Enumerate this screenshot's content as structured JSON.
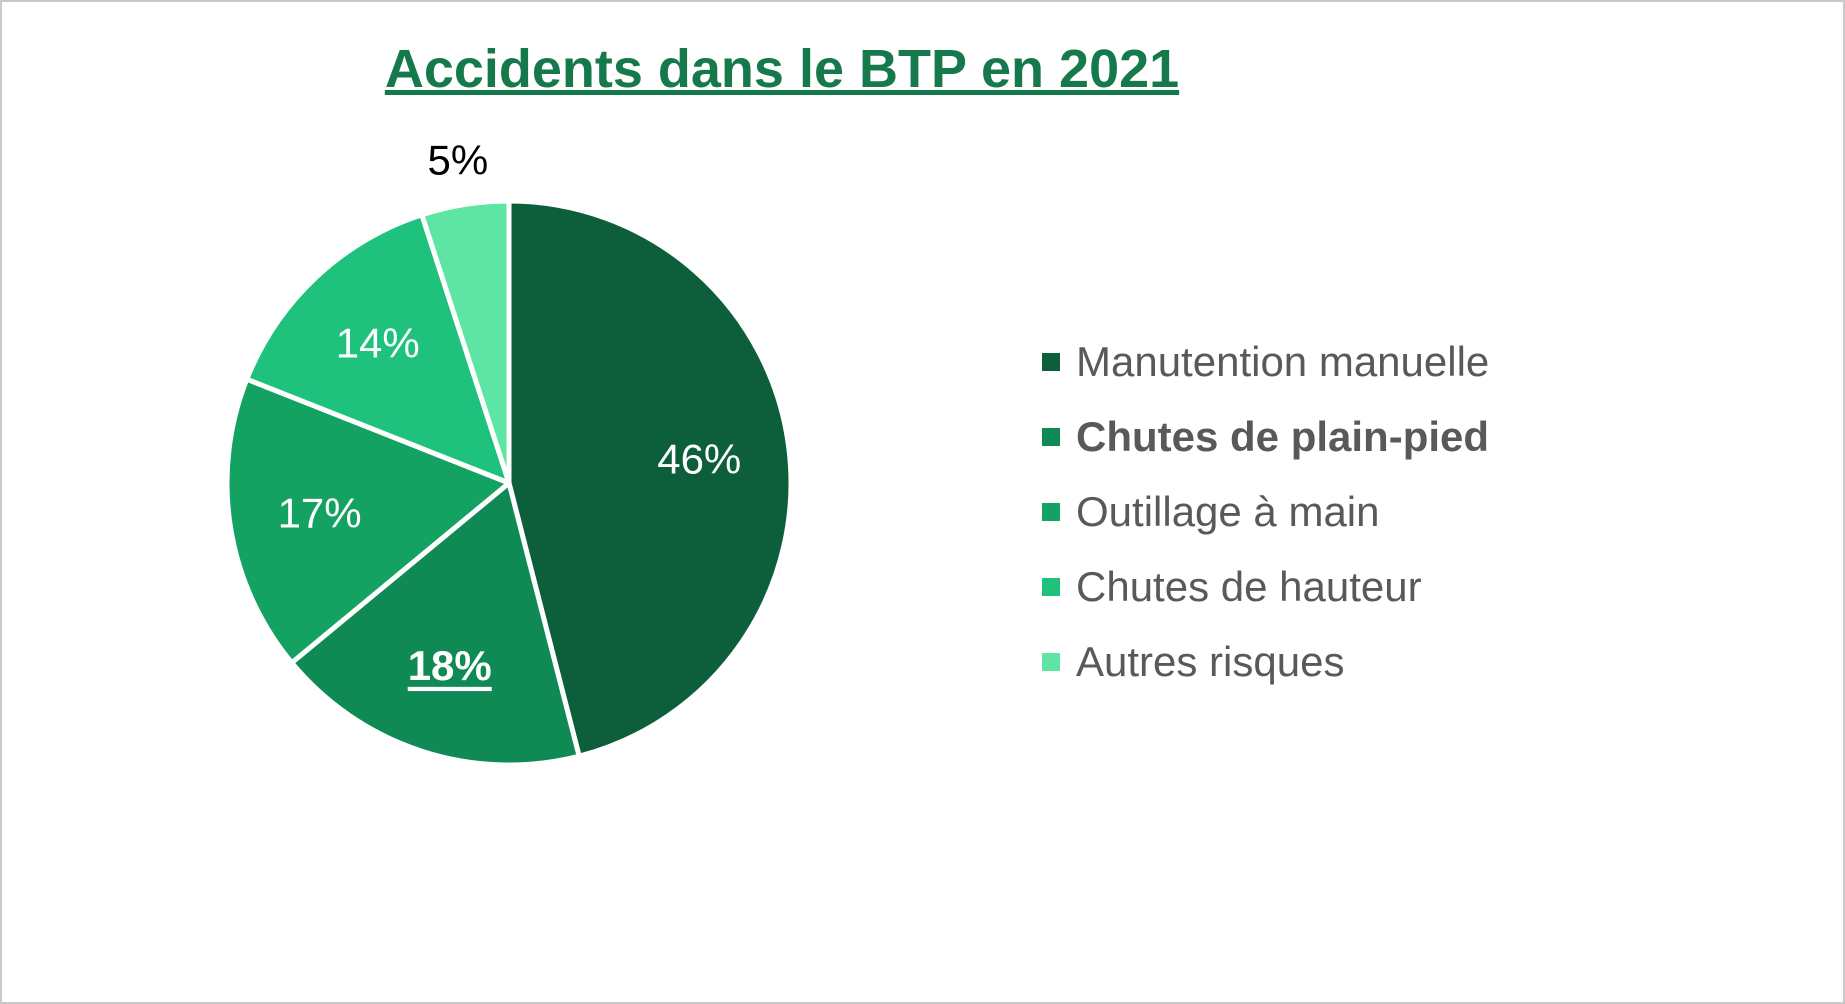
{
  "chart_data": {
    "type": "pie",
    "title": "Accidents dans le BTP en 2021",
    "start_angle_deg": 0,
    "direction": "clockwise",
    "legend_position": "right",
    "grid": false,
    "colors": {
      "title": "#15794b",
      "legend_text": "#595959",
      "inside_label": "#ffffff",
      "outside_label": "#000000",
      "slice_border": "#ffffff"
    },
    "slices": [
      {
        "label": "Manutention manuelle",
        "value_pct": 46,
        "data_label": "46%",
        "color": "#0d5f3c",
        "bold_legend": false,
        "label_outside": false
      },
      {
        "label": "Chutes de plain-pied",
        "value_pct": 18,
        "data_label": "18%",
        "color": "#108a55",
        "bold_legend": true,
        "label_outside": false,
        "data_label_style": "bold-underline"
      },
      {
        "label": "Outillage à main",
        "value_pct": 17,
        "data_label": "17%",
        "color": "#14a263",
        "bold_legend": false,
        "label_outside": false
      },
      {
        "label": "Chutes de hauteur",
        "value_pct": 14,
        "data_label": "14%",
        "color": "#1ec27d",
        "bold_legend": false,
        "label_outside": false
      },
      {
        "label": "Autres risques",
        "value_pct": 5,
        "data_label": "5%",
        "color": "#5fe5a3",
        "bold_legend": false,
        "label_outside": true
      }
    ]
  }
}
